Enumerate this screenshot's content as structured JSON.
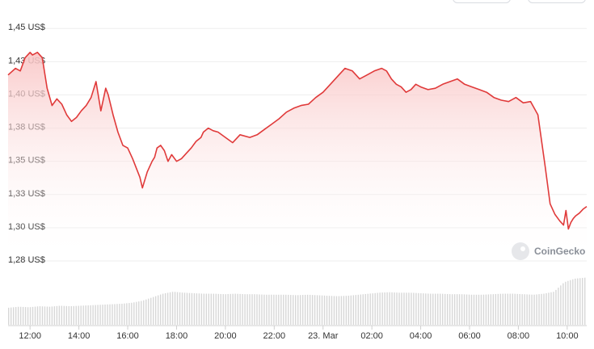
{
  "watermark": {
    "text": "CoinGecko",
    "icon": "gecko-logo-icon"
  },
  "colors": {
    "line": "#e03a3a",
    "fill_top": "#fbd3d3",
    "grid": "#eeeeee",
    "volume": "#d7d7d7"
  },
  "chart_data": {
    "type": "area",
    "title": "",
    "xlabel": "",
    "ylabel": "",
    "ylim": [
      1.275,
      1.455
    ],
    "yticks": [
      {
        "value": 1.45,
        "label": "1,45 US$"
      },
      {
        "value": 1.425,
        "label": "1,43 US$"
      },
      {
        "value": 1.4,
        "label": "1,40 US$"
      },
      {
        "value": 1.375,
        "label": "1,38 US$"
      },
      {
        "value": 1.35,
        "label": "1,35 US$"
      },
      {
        "value": 1.325,
        "label": "1,33 US$"
      },
      {
        "value": 1.3,
        "label": "1,30 US$"
      },
      {
        "value": 1.275,
        "label": "1,28 US$"
      }
    ],
    "xrange": [
      -0.9,
      22.8
    ],
    "xticks": [
      {
        "value": 0,
        "label": "12:00"
      },
      {
        "value": 2,
        "label": "14:00"
      },
      {
        "value": 4,
        "label": "16:00"
      },
      {
        "value": 6,
        "label": "18:00"
      },
      {
        "value": 8,
        "label": "20:00"
      },
      {
        "value": 10,
        "label": "22:00"
      },
      {
        "value": 12,
        "label": "23. Mar"
      },
      {
        "value": 14,
        "label": "02:00"
      },
      {
        "value": 16,
        "label": "04:00"
      },
      {
        "value": 18,
        "label": "06:00"
      },
      {
        "value": 20,
        "label": "08:00"
      },
      {
        "value": 22,
        "label": "10:00"
      }
    ],
    "series": [
      {
        "x": [
          -0.9,
          -0.6,
          -0.4,
          -0.2,
          0,
          0.1,
          0.3,
          0.5,
          0.7,
          0.9,
          1.1,
          1.3,
          1.5,
          1.7,
          1.9,
          2.1,
          2.3,
          2.5,
          2.7,
          2.9,
          3.1,
          3.2,
          3.4,
          3.6,
          3.8,
          4.0,
          4.2,
          4.35,
          4.5,
          4.6,
          4.8,
          5.0,
          5.1,
          5.2,
          5.35,
          5.5,
          5.65,
          5.8,
          6.0,
          6.2,
          6.4,
          6.6,
          6.8,
          7.0,
          7.1,
          7.3,
          7.5,
          7.7,
          8.0,
          8.3,
          8.6,
          9.0,
          9.3,
          9.6,
          9.9,
          10.2,
          10.5,
          10.8,
          11.1,
          11.4,
          11.7,
          12.0,
          12.3,
          12.6,
          12.9,
          13.2,
          13.5,
          13.8,
          14.1,
          14.4,
          14.6,
          14.8,
          15.0,
          15.2,
          15.4,
          15.6,
          15.8,
          16.0,
          16.3,
          16.6,
          16.9,
          17.2,
          17.5,
          17.8,
          18.1,
          18.4,
          18.7,
          19.0,
          19.3,
          19.6,
          19.9,
          20.2,
          20.5,
          20.8,
          21.1,
          21.3,
          21.5,
          21.7,
          21.85,
          21.95,
          22.05,
          22.15,
          22.25,
          22.35,
          22.5,
          22.65,
          22.8
        ],
        "y": [
          1.415,
          1.42,
          1.418,
          1.428,
          1.432,
          1.43,
          1.432,
          1.428,
          1.405,
          1.392,
          1.397,
          1.393,
          1.385,
          1.38,
          1.383,
          1.388,
          1.392,
          1.398,
          1.41,
          1.388,
          1.405,
          1.4,
          1.385,
          1.372,
          1.362,
          1.36,
          1.352,
          1.345,
          1.338,
          1.33,
          1.342,
          1.35,
          1.353,
          1.36,
          1.362,
          1.358,
          1.35,
          1.355,
          1.35,
          1.352,
          1.356,
          1.36,
          1.365,
          1.368,
          1.372,
          1.375,
          1.373,
          1.372,
          1.368,
          1.364,
          1.37,
          1.368,
          1.37,
          1.374,
          1.378,
          1.382,
          1.387,
          1.39,
          1.392,
          1.393,
          1.398,
          1.402,
          1.408,
          1.414,
          1.42,
          1.418,
          1.412,
          1.415,
          1.418,
          1.42,
          1.418,
          1.412,
          1.408,
          1.406,
          1.402,
          1.404,
          1.408,
          1.406,
          1.404,
          1.405,
          1.408,
          1.41,
          1.412,
          1.408,
          1.406,
          1.404,
          1.402,
          1.398,
          1.396,
          1.395,
          1.398,
          1.394,
          1.395,
          1.385,
          1.346,
          1.318,
          1.31,
          1.305,
          1.302,
          1.313,
          1.299,
          1.304,
          1.307,
          1.309,
          1.311,
          1.314,
          1.316
        ]
      }
    ],
    "volume": [
      0.34,
      0.36,
      0.35,
      0.37,
      0.36,
      0.38,
      0.37,
      0.38,
      0.39,
      0.4,
      0.41,
      0.42,
      0.44,
      0.48,
      0.55,
      0.62,
      0.66,
      0.64,
      0.63,
      0.62,
      0.62,
      0.61,
      0.62,
      0.61,
      0.61,
      0.6,
      0.6,
      0.6,
      0.59,
      0.6,
      0.59,
      0.58,
      0.57,
      0.58,
      0.6,
      0.62,
      0.64,
      0.65,
      0.64,
      0.64,
      0.63,
      0.62,
      0.62,
      0.61,
      0.61,
      0.6,
      0.6,
      0.61,
      0.62,
      0.62,
      0.61,
      0.6,
      0.62,
      0.66,
      0.85,
      0.92,
      0.94
    ],
    "grid": true,
    "legend": "none"
  }
}
